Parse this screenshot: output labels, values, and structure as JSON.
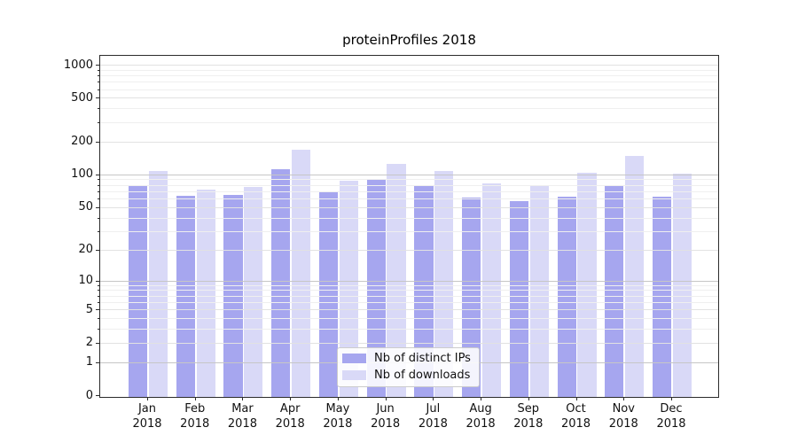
{
  "title": "proteinProfiles 2018",
  "legend": {
    "items": [
      {
        "label": "Nb of distinct IPs",
        "color": "#a6a6ef"
      },
      {
        "label": "Nb of downloads",
        "color": "#d9d9f7"
      }
    ]
  },
  "chart_data": {
    "type": "bar",
    "title": "proteinProfiles 2018",
    "categories": [
      "Jan 2018",
      "Feb 2018",
      "Mar 2018",
      "Apr 2018",
      "May 2018",
      "Jun 2018",
      "Jul 2018",
      "Aug 2018",
      "Sep 2018",
      "Oct 2018",
      "Nov 2018",
      "Dec 2018"
    ],
    "series": [
      {
        "name": "Nb of distinct IPs",
        "color": "#a6a6ef",
        "values": [
          78,
          64,
          65,
          112,
          69,
          90,
          79,
          61,
          57,
          63,
          78,
          62
        ]
      },
      {
        "name": "Nb of downloads",
        "color": "#d9d9f7",
        "values": [
          107,
          73,
          77,
          168,
          88,
          126,
          108,
          83,
          78,
          104,
          148,
          101
        ]
      }
    ],
    "yscale": "log10(x+1)",
    "ylim": [
      0,
      1100
    ],
    "y_ticks_labeled": [
      0,
      1,
      2,
      5,
      10,
      20,
      50,
      100,
      200,
      500,
      1000
    ],
    "y_ticks_minor": [
      3,
      4,
      6,
      7,
      8,
      9,
      30,
      40,
      60,
      70,
      80,
      90,
      300,
      400,
      600,
      700,
      800,
      900
    ],
    "grid": true,
    "legend_position": "lower-center"
  },
  "colors": {
    "grid_major": "#c6c6c6",
    "grid_mid": "#e2e2e2",
    "grid_minor": "#efefef",
    "spine": "#2b2b2b",
    "text": "#111111",
    "background": "#ffffff"
  }
}
